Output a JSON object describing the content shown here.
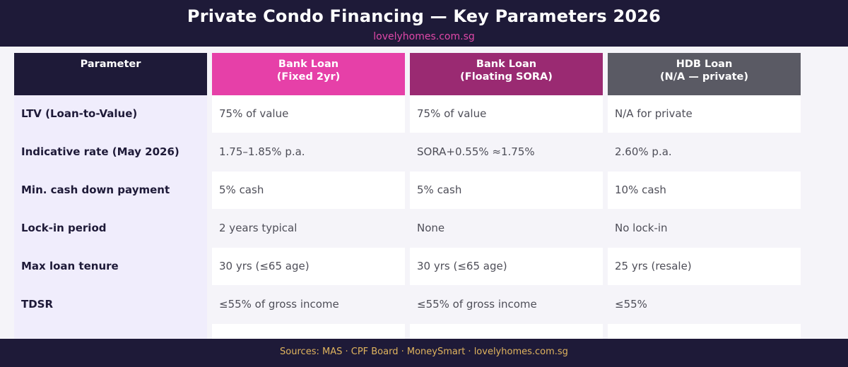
{
  "header": {
    "title": "Private Condo Financing — Key Parameters 2026",
    "subtitle": "lovelyhomes.com.sg"
  },
  "columns": [
    {
      "line1": "Parameter",
      "line2": "",
      "color": "#1e1a38"
    },
    {
      "line1": "Bank Loan",
      "line2": "(Fixed 2yr)",
      "color": "#e640a8"
    },
    {
      "line1": "Bank Loan",
      "line2": "(Floating SORA)",
      "color": "#9a2a72"
    },
    {
      "line1": "HDB Loan",
      "line2": "(N/A — private)",
      "color": "#5a5a64"
    }
  ],
  "rows": [
    {
      "label": "LTV (Loan-to-Value)",
      "fixed": "75% of value",
      "floating": "75% of value",
      "hdb": "N/A for private"
    },
    {
      "label": "Indicative rate (May 2026)",
      "fixed": "1.75–1.85% p.a.",
      "floating": "SORA+0.55% ≈1.75%",
      "hdb": "2.60% p.a."
    },
    {
      "label": "Min. cash down payment",
      "fixed": "5% cash",
      "floating": "5% cash",
      "hdb": "10% cash"
    },
    {
      "label": "Lock-in period",
      "fixed": "2 years typical",
      "floating": "None",
      "hdb": "No lock-in"
    },
    {
      "label": "Max loan tenure",
      "fixed": "30 yrs (≤65 age)",
      "floating": "30 yrs (≤65 age)",
      "hdb": "25 yrs (resale)"
    },
    {
      "label": "TDSR",
      "fixed": "≤55% of gross income",
      "floating": "≤55% of gross income",
      "hdb": "≤55%"
    }
  ],
  "footer": {
    "sources": "Sources: MAS · CPF Board · MoneySmart · lovelyhomes.com.sg"
  }
}
